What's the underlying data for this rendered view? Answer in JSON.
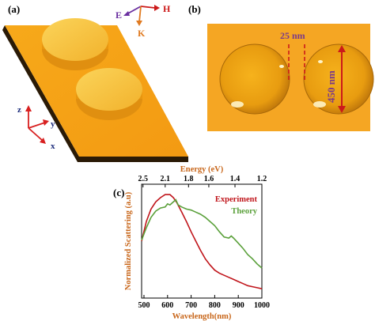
{
  "panels": {
    "a": {
      "label": "(a)"
    },
    "b": {
      "label": "(b)"
    },
    "c": {
      "label": "(c)"
    }
  },
  "panel_a": {
    "polarization": {
      "e": "E",
      "k": "K",
      "h": "H"
    },
    "axes": {
      "z": "z",
      "y": "y",
      "x": "x"
    },
    "colors": {
      "e": "#6a2fa0",
      "k": "#e07a20",
      "h": "#cc1a1a",
      "xyz": "#d82020",
      "gold": "#f5a623"
    }
  },
  "panel_b": {
    "gap_label": "25 nm",
    "diameter_label": "450 nm",
    "colors": {
      "annotation": "#7a3a8a",
      "arrow": "#cc1a1a",
      "gold": "#f5a623"
    }
  },
  "chart_data": {
    "type": "line",
    "title": "",
    "xlabel": "Wavelength(nm)",
    "x2label": "Energy (eV)",
    "ylabel": "Normalized Scattering (a.u)",
    "xlim": [
      490,
      1000
    ],
    "ylim": [
      0,
      1.1
    ],
    "xticks": [
      500,
      600,
      700,
      800,
      900,
      1000
    ],
    "x2ticks": [
      "2.5",
      "2.1",
      "1.8",
      "1.6",
      "1.4",
      "1.2"
    ],
    "x2tick_positions_nm": [
      496,
      590,
      689,
      775,
      886,
      1033
    ],
    "series": [
      {
        "name": "Experiment",
        "color": "#c0151b",
        "x": [
          490,
          510,
          530,
          550,
          570,
          590,
          610,
          625,
          640,
          660,
          680,
          700,
          720,
          740,
          760,
          780,
          800,
          820,
          840,
          860,
          880,
          900,
          920,
          940,
          960,
          980,
          1000
        ],
        "y": [
          0.55,
          0.74,
          0.86,
          0.93,
          0.97,
          1.0,
          1.0,
          0.97,
          0.92,
          0.83,
          0.74,
          0.64,
          0.55,
          0.46,
          0.38,
          0.32,
          0.27,
          0.24,
          0.22,
          0.2,
          0.18,
          0.16,
          0.14,
          0.12,
          0.11,
          0.1,
          0.09
        ]
      },
      {
        "name": "Theory",
        "color": "#5aa03a",
        "x": [
          490,
          510,
          530,
          550,
          570,
          590,
          600,
          610,
          620,
          635,
          645,
          660,
          680,
          700,
          720,
          740,
          760,
          780,
          800,
          820,
          840,
          860,
          870,
          880,
          900,
          920,
          940,
          960,
          980,
          1000
        ],
        "y": [
          0.56,
          0.68,
          0.78,
          0.84,
          0.87,
          0.88,
          0.91,
          0.9,
          0.92,
          0.95,
          0.9,
          0.88,
          0.86,
          0.85,
          0.83,
          0.81,
          0.78,
          0.74,
          0.7,
          0.64,
          0.59,
          0.58,
          0.6,
          0.58,
          0.53,
          0.48,
          0.42,
          0.38,
          0.33,
          0.29
        ]
      }
    ],
    "legend": {
      "position": "top-right"
    }
  }
}
